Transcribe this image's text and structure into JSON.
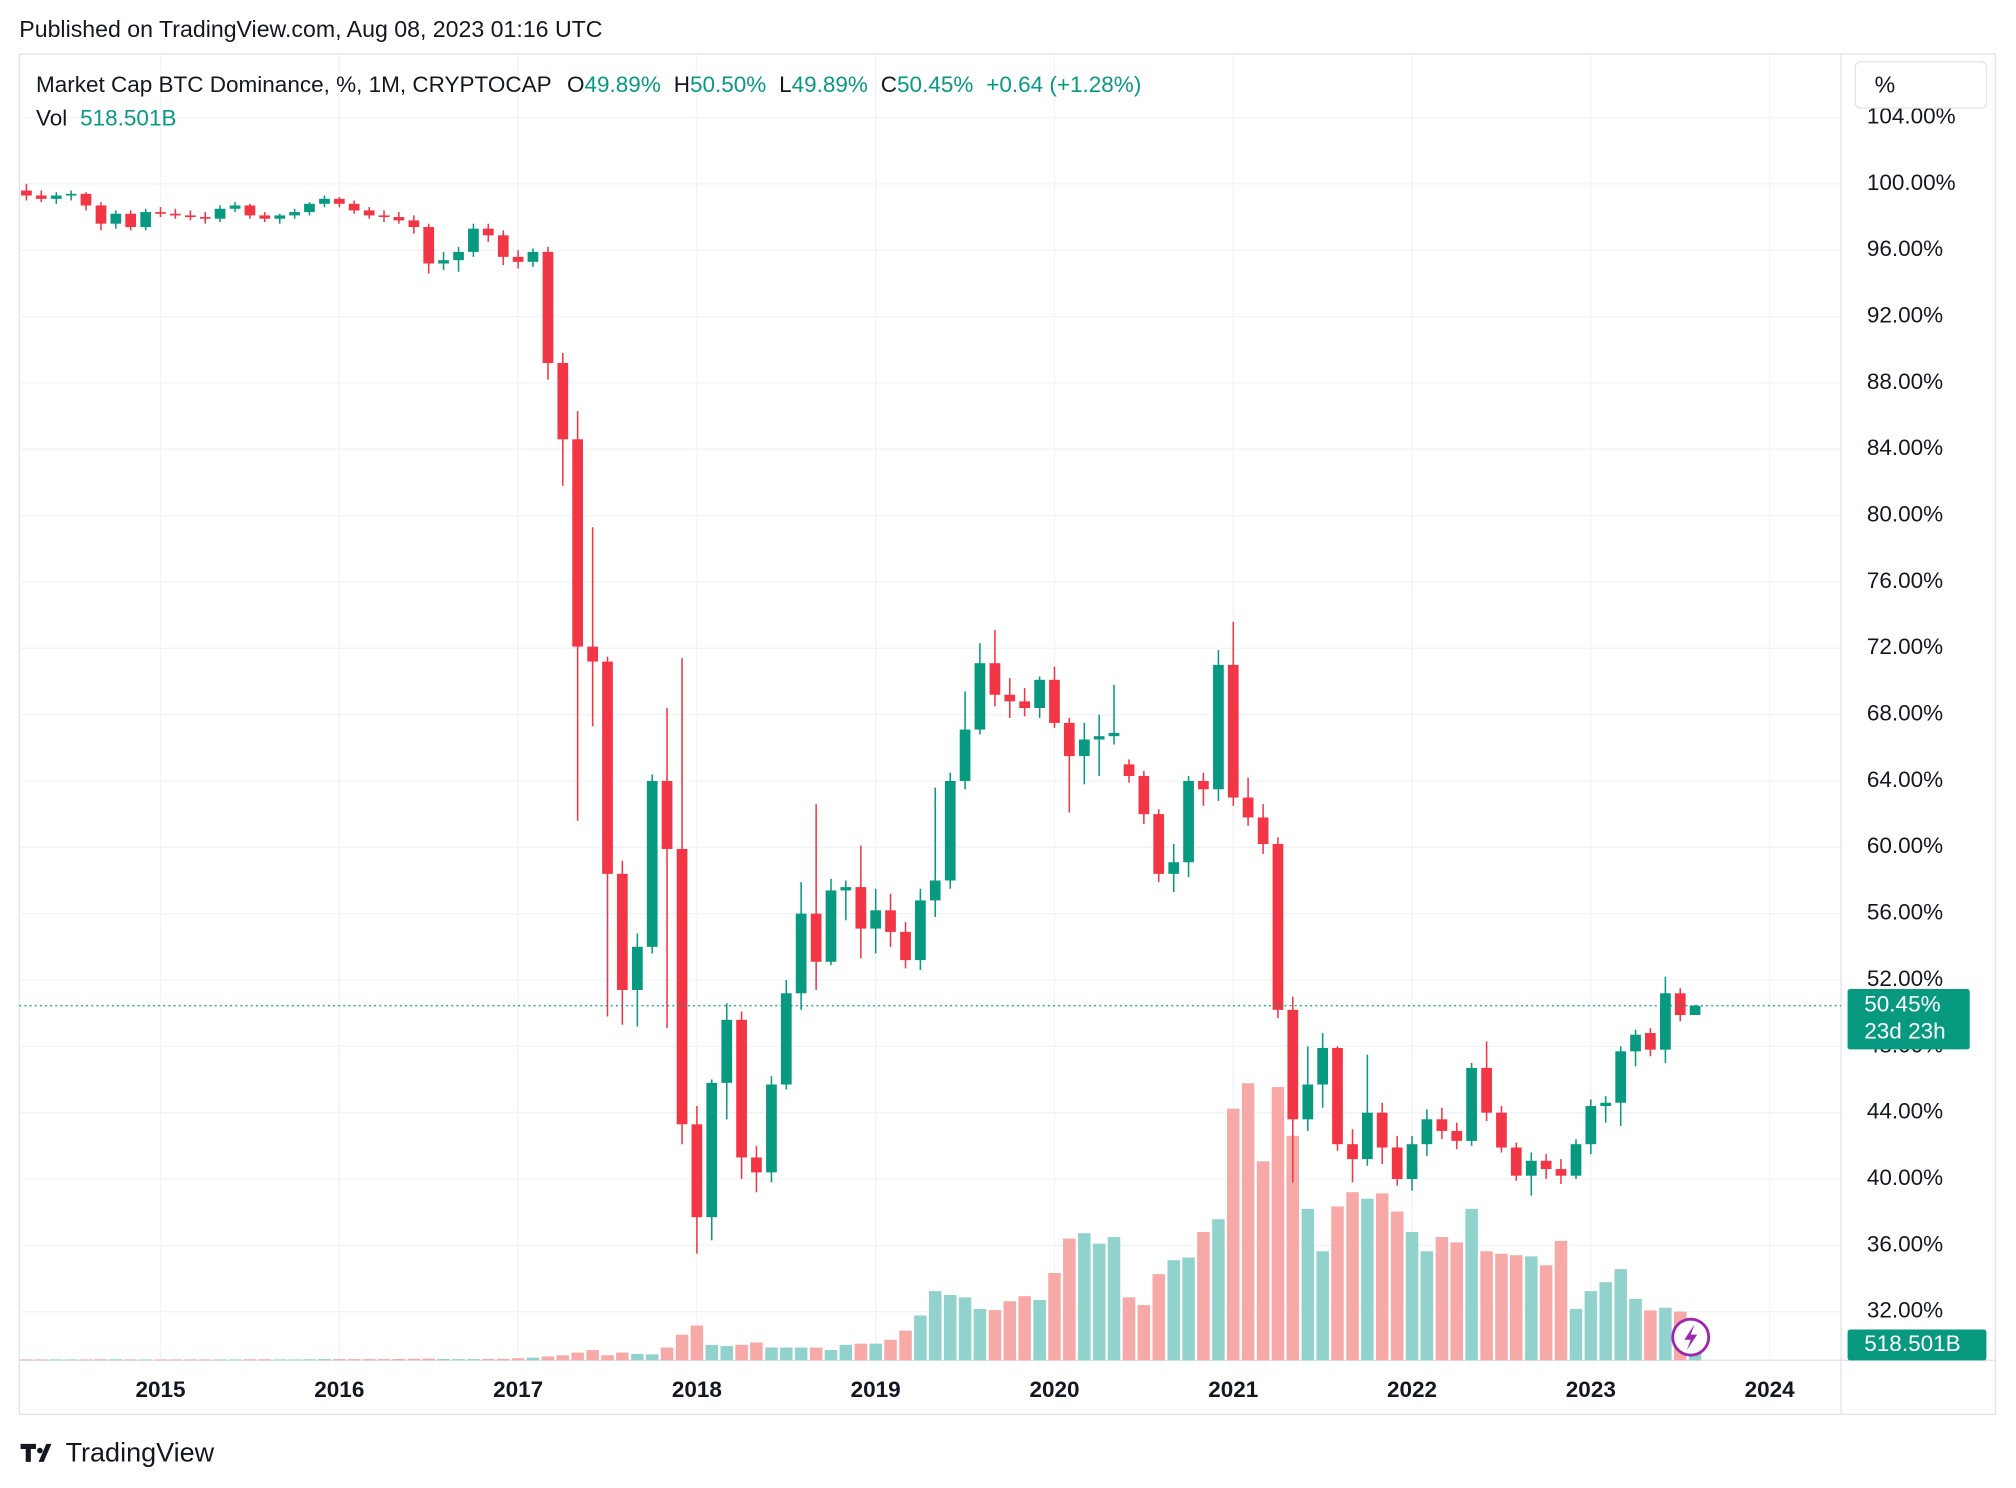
{
  "published": "Published on TradingView.com, Aug 08, 2023 01:16 UTC",
  "brand": "TradingView",
  "scale_button": "%",
  "chart_data": {
    "type": "candlestick",
    "title": "Market Cap BTC Dominance, %, 1M, CRYPTOCAP",
    "legend": {
      "ohlc": [
        {
          "key": "O",
          "value": "49.89%"
        },
        {
          "key": "H",
          "value": "50.50%"
        },
        {
          "key": "L",
          "value": "49.89%"
        },
        {
          "key": "C",
          "value": "50.45%"
        }
      ],
      "change": "+0.64 (+1.28%)",
      "volume_key": "Vol",
      "volume_value": "518.501B"
    },
    "last_price_label": "50.45%",
    "countdown": "23d 23h",
    "last_volume_label": "518.501B",
    "up_color": "#089981",
    "down_color": "#f23645",
    "up_volume_color": "#92d2cc",
    "down_volume_color": "#f7a9a7",
    "grid": true,
    "xlim": [
      2014.21,
      2024.4
    ],
    "xticks": [
      2015,
      2016,
      2017,
      2018,
      2019,
      2020,
      2021,
      2022,
      2023,
      2024
    ],
    "ylim": [
      29.07,
      107.83
    ],
    "yticks": [
      {
        "value": 32,
        "label": "32.00%"
      },
      {
        "value": 36,
        "label": "36.00%"
      },
      {
        "value": 40,
        "label": "40.00%"
      },
      {
        "value": 44,
        "label": "44.00%"
      },
      {
        "value": 48,
        "label": "48.00%"
      },
      {
        "value": 52,
        "label": "52.00%"
      },
      {
        "value": 56,
        "label": "56.00%"
      },
      {
        "value": 60,
        "label": "60.00%"
      },
      {
        "value": 64,
        "label": "64.00%"
      },
      {
        "value": 68,
        "label": "68.00%"
      },
      {
        "value": 72,
        "label": "72.00%"
      },
      {
        "value": 76,
        "label": "76.00%"
      },
      {
        "value": 80,
        "label": "80.00%"
      },
      {
        "value": 84,
        "label": "84.00%"
      },
      {
        "value": 88,
        "label": "88.00%"
      },
      {
        "value": 92,
        "label": "92.00%"
      },
      {
        "value": 96,
        "label": "96.00%"
      },
      {
        "value": 100,
        "label": "100.00%"
      },
      {
        "value": 104,
        "label": "104.00%"
      }
    ],
    "vol_ylim": [
      0,
      10000
    ],
    "x": [
      2014.25,
      2014.333,
      2014.417,
      2014.5,
      2014.583,
      2014.667,
      2014.75,
      2014.833,
      2014.917,
      2015,
      2015.083,
      2015.167,
      2015.25,
      2015.333,
      2015.417,
      2015.5,
      2015.583,
      2015.667,
      2015.75,
      2015.833,
      2015.917,
      2016,
      2016.083,
      2016.167,
      2016.25,
      2016.333,
      2016.417,
      2016.5,
      2016.583,
      2016.667,
      2016.75,
      2016.833,
      2016.917,
      2017,
      2017.083,
      2017.167,
      2017.25,
      2017.333,
      2017.417,
      2017.5,
      2017.583,
      2017.667,
      2017.75,
      2017.833,
      2017.917,
      2018,
      2018.083,
      2018.167,
      2018.25,
      2018.333,
      2018.417,
      2018.5,
      2018.583,
      2018.667,
      2018.75,
      2018.833,
      2018.917,
      2019,
      2019.083,
      2019.167,
      2019.25,
      2019.333,
      2019.417,
      2019.5,
      2019.583,
      2019.667,
      2019.75,
      2019.833,
      2019.917,
      2020,
      2020.083,
      2020.167,
      2020.25,
      2020.333,
      2020.417,
      2020.5,
      2020.583,
      2020.667,
      2020.75,
      2020.833,
      2020.917,
      2021,
      2021.083,
      2021.167,
      2021.25,
      2021.333,
      2021.417,
      2021.5,
      2021.583,
      2021.667,
      2021.75,
      2021.833,
      2021.917,
      2022,
      2022.083,
      2022.167,
      2022.25,
      2022.333,
      2022.417,
      2022.5,
      2022.583,
      2022.667,
      2022.75,
      2022.833,
      2022.917,
      2023,
      2023.083,
      2023.167,
      2023.25,
      2023.333,
      2023.417,
      2023.5,
      2023.583
    ],
    "open": [
      99.6,
      99.3,
      99.1,
      99.3,
      99.4,
      98.7,
      97.6,
      98.2,
      97.4,
      98.3,
      98.2,
      98.1,
      98.0,
      97.9,
      98.5,
      98.7,
      98.1,
      97.9,
      98.1,
      98.3,
      98.8,
      99.1,
      98.8,
      98.4,
      98.1,
      98.0,
      97.8,
      97.4,
      95.2,
      95.4,
      95.9,
      97.3,
      96.9,
      95.6,
      95.3,
      95.9,
      89.2,
      84.6,
      72.1,
      71.2,
      58.4,
      51.4,
      54.0,
      64.0,
      59.9,
      43.3,
      37.7,
      45.8,
      49.6,
      41.3,
      40.4,
      45.7,
      51.2,
      56.0,
      53.1,
      57.4,
      57.6,
      55.1,
      56.2,
      54.9,
      53.2,
      56.8,
      58.0,
      64.0,
      67.1,
      71.1,
      69.2,
      68.8,
      68.4,
      70.1,
      67.5,
      65.5,
      66.5,
      66.7,
      65.0,
      64.3,
      62.0,
      58.4,
      59.1,
      64.0,
      63.5,
      71.0,
      63.0,
      61.8,
      60.2,
      50.2,
      43.6,
      45.7,
      47.9,
      42.1,
      41.2,
      44.0,
      41.9,
      40.0,
      42.1,
      43.6,
      42.9,
      42.3,
      46.7,
      44.0,
      41.9,
      40.2,
      41.1,
      40.6,
      40.2,
      42.1,
      44.4,
      44.6,
      47.7,
      48.8,
      47.8,
      51.2,
      49.89
    ],
    "high": [
      100.0,
      99.6,
      99.5,
      99.6,
      99.5,
      98.9,
      98.4,
      98.4,
      98.5,
      98.6,
      98.5,
      98.4,
      98.3,
      98.7,
      98.9,
      98.8,
      98.3,
      98.2,
      98.5,
      98.9,
      99.3,
      99.2,
      99.0,
      98.6,
      98.4,
      98.3,
      98.1,
      97.6,
      95.9,
      96.2,
      97.6,
      97.6,
      97.2,
      96.0,
      96.1,
      96.2,
      89.8,
      86.3,
      79.3,
      71.5,
      59.2,
      54.8,
      64.4,
      68.4,
      71.4,
      44.4,
      46.0,
      50.6,
      50.1,
      42.0,
      46.2,
      52.0,
      57.9,
      62.6,
      58.1,
      58.0,
      60.1,
      57.5,
      57.2,
      55.5,
      57.5,
      63.6,
      64.5,
      69.4,
      72.3,
      73.1,
      70.2,
      69.6,
      70.3,
      70.9,
      67.8,
      67.5,
      68.0,
      69.8,
      65.3,
      64.6,
      62.3,
      60.2,
      64.3,
      64.5,
      71.9,
      73.6,
      64.2,
      62.6,
      60.6,
      51.0,
      48.0,
      48.8,
      48.0,
      43.0,
      47.5,
      44.6,
      42.6,
      42.6,
      44.2,
      44.3,
      43.4,
      47.0,
      48.3,
      44.4,
      42.2,
      41.6,
      41.5,
      41.2,
      42.4,
      44.8,
      45.0,
      48.0,
      49.0,
      49.1,
      52.2,
      51.5,
      50.5
    ],
    "low": [
      99.0,
      98.9,
      98.8,
      99.0,
      98.4,
      97.2,
      97.3,
      97.2,
      97.2,
      98.0,
      97.9,
      97.8,
      97.6,
      97.7,
      98.3,
      97.9,
      97.7,
      97.6,
      97.9,
      98.1,
      98.6,
      98.6,
      98.2,
      97.9,
      97.7,
      97.6,
      97.0,
      94.6,
      94.8,
      94.7,
      95.6,
      96.5,
      95.1,
      94.9,
      95.0,
      88.2,
      81.8,
      61.6,
      67.3,
      49.8,
      49.3,
      49.2,
      53.6,
      49.1,
      42.1,
      35.5,
      36.3,
      43.6,
      40.0,
      39.2,
      39.8,
      45.4,
      50.2,
      51.4,
      52.9,
      55.6,
      53.3,
      53.6,
      54.0,
      52.7,
      52.6,
      55.8,
      57.5,
      63.5,
      66.8,
      68.5,
      67.8,
      67.9,
      67.8,
      67.2,
      62.1,
      63.8,
      64.3,
      66.2,
      63.9,
      61.4,
      57.9,
      57.3,
      58.2,
      62.5,
      62.8,
      62.5,
      61.3,
      59.6,
      49.7,
      39.8,
      42.9,
      44.3,
      41.7,
      39.8,
      40.8,
      40.9,
      39.6,
      39.3,
      41.4,
      42.4,
      41.8,
      42.0,
      43.5,
      41.6,
      39.9,
      39.0,
      40.0,
      39.7,
      40.0,
      41.5,
      43.4,
      43.2,
      46.8,
      47.4,
      47.0,
      49.5,
      49.89
    ],
    "close": [
      99.3,
      99.1,
      99.3,
      99.4,
      98.7,
      97.6,
      98.2,
      97.4,
      98.3,
      98.2,
      98.1,
      98.0,
      97.9,
      98.5,
      98.7,
      98.1,
      97.9,
      98.1,
      98.3,
      98.8,
      99.1,
      98.8,
      98.4,
      98.1,
      98.0,
      97.8,
      97.4,
      95.2,
      95.4,
      95.9,
      97.3,
      96.9,
      95.6,
      95.3,
      95.9,
      89.2,
      84.6,
      72.1,
      71.2,
      58.4,
      51.4,
      54.0,
      64.0,
      59.9,
      43.3,
      37.7,
      45.8,
      49.6,
      41.3,
      40.4,
      45.7,
      51.2,
      56.0,
      53.1,
      57.4,
      57.6,
      55.1,
      56.2,
      54.9,
      53.2,
      56.8,
      58.0,
      64.0,
      67.1,
      71.1,
      69.2,
      68.8,
      68.4,
      70.1,
      67.5,
      65.5,
      66.5,
      66.7,
      66.9,
      64.3,
      62.0,
      58.4,
      59.1,
      64.0,
      63.5,
      71.0,
      63.0,
      61.8,
      60.2,
      50.2,
      43.6,
      45.7,
      47.9,
      42.1,
      41.2,
      44.0,
      41.9,
      40.0,
      42.1,
      43.6,
      42.9,
      42.3,
      46.7,
      44.0,
      41.9,
      40.2,
      41.1,
      40.6,
      40.2,
      42.1,
      44.4,
      44.6,
      47.7,
      48.7,
      47.8,
      51.2,
      49.89,
      50.45
    ],
    "volume": [
      30,
      30,
      30,
      30,
      30,
      35,
      35,
      30,
      30,
      30,
      30,
      30,
      30,
      30,
      30,
      35,
      35,
      30,
      30,
      35,
      40,
      40,
      40,
      40,
      40,
      45,
      50,
      55,
      45,
      40,
      40,
      45,
      50,
      70,
      90,
      130,
      170,
      260,
      345,
      170,
      260,
      215,
      200,
      430,
      860,
      1170,
      520,
      480,
      520,
      600,
      430,
      430,
      430,
      430,
      345,
      520,
      560,
      560,
      690,
      1000,
      1510,
      2330,
      2200,
      2120,
      1730,
      1690,
      1990,
      2160,
      2030,
      2940,
      4100,
      4280,
      3930,
      4150,
      2120,
      1860,
      2900,
      3370,
      3460,
      4320,
      4750,
      8470,
      9330,
      6700,
      9200,
      7560,
      5100,
      3670,
      5180,
      5660,
      5440,
      5620,
      5010,
      4320,
      3670,
      4150,
      3970,
      5100,
      3670,
      3590,
      3540,
      3500,
      3200,
      4020,
      1730,
      2330,
      2630,
      3070,
      2070,
      1680,
      1770,
      1640,
      518.501
    ]
  }
}
